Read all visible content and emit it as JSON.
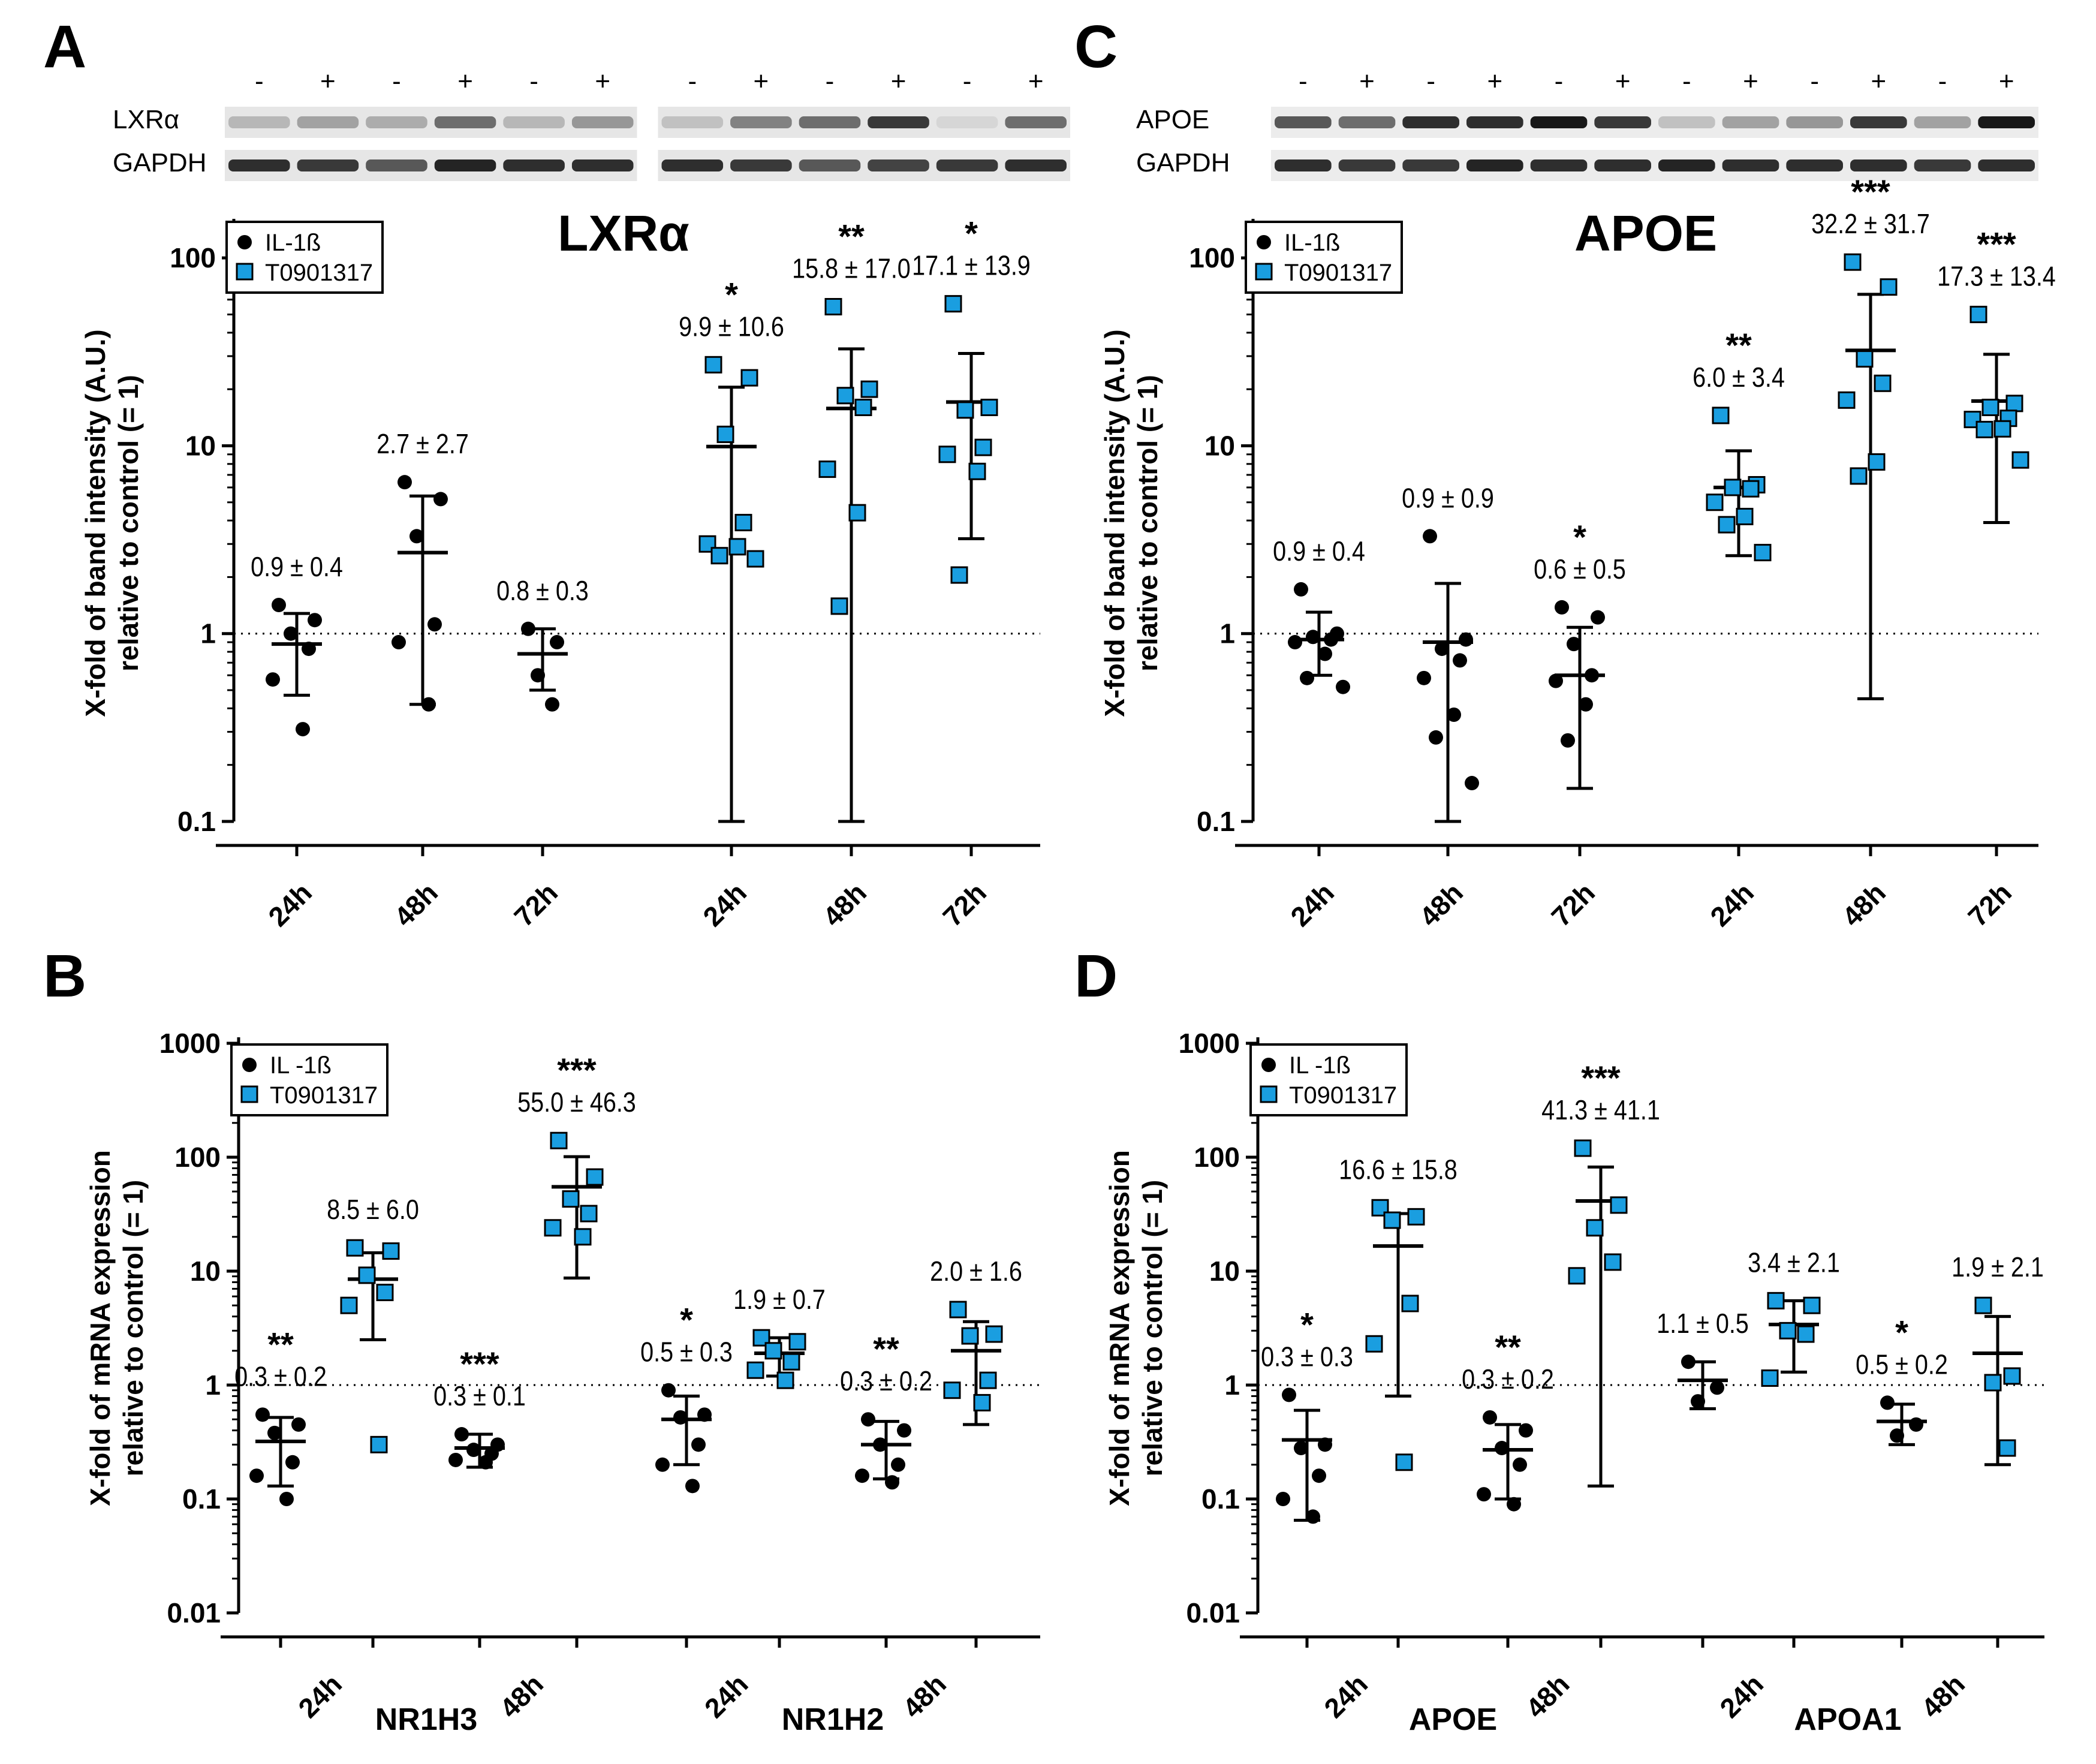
{
  "colors": {
    "il1b": "#000000",
    "t0901317": "#1a9ee0",
    "axis": "#000000",
    "blot_band": "#2a2a2a"
  },
  "icons": {
    "il1b_marker": "filled-circle",
    "t0901317_marker": "blue-square"
  },
  "chart_data": [
    {
      "panel": "A",
      "type": "scatter",
      "title": "LXRα",
      "ylabel_line1": "X-fold of band intensity (A.U.)",
      "ylabel_line2": "relative to control (= 1)",
      "yscale": "log",
      "ylim": [
        0.1,
        150
      ],
      "yticks": [
        0.1,
        1,
        10,
        100
      ],
      "ytick_labels": [
        "0.1",
        "1",
        "10",
        "100"
      ],
      "reference_line": 1,
      "legend": [
        "IL-1ß",
        "T0901317"
      ],
      "blot": {
        "signs": [
          "-",
          "+",
          "-",
          "+",
          "-",
          "+",
          "-",
          "+",
          "-",
          "+",
          "-",
          "+"
        ],
        "rows": [
          {
            "label": "LXRα",
            "intensities": [
              0.25,
              0.35,
              0.3,
              0.6,
              0.25,
              0.4,
              0.2,
              0.5,
              0.6,
              0.85,
              0.1,
              0.6
            ]
          },
          {
            "label": "GAPDH",
            "intensities": [
              0.9,
              0.85,
              0.7,
              0.95,
              0.9,
              0.9,
              0.9,
              0.85,
              0.7,
              0.8,
              0.85,
              0.9
            ]
          }
        ]
      },
      "groups": [
        {
          "label": "24h",
          "series": "IL-1ß",
          "mean": 0.88,
          "err_low": 0.47,
          "err_high": 1.28,
          "annot": "0.9 ± 0.4",
          "sig": "",
          "points": [
            1.42,
            1.18,
            1.0,
            0.83,
            0.57,
            0.31
          ]
        },
        {
          "label": "48h",
          "series": "IL-1ß",
          "mean": 2.7,
          "err_low": 0.42,
          "err_high": 5.4,
          "annot": "2.7 ± 2.7",
          "sig": "",
          "points": [
            6.4,
            5.2,
            3.3,
            1.12,
            0.9,
            0.42
          ]
        },
        {
          "label": "72h",
          "series": "IL-1ß",
          "mean": 0.78,
          "err_low": 0.5,
          "err_high": 1.06,
          "annot": "0.8 ± 0.3",
          "sig": "",
          "points": [
            1.06,
            0.9,
            0.6,
            0.42
          ]
        },
        {
          "label": "24h",
          "series": "T0901317",
          "mean": 9.9,
          "err_low": 0.1,
          "err_high": 20.5,
          "annot": "9.9 ± 10.6",
          "sig": "*",
          "points": [
            27,
            23,
            11.5,
            3.9,
            3.0,
            2.9,
            2.6,
            2.5
          ]
        },
        {
          "label": "48h",
          "series": "T0901317",
          "mean": 15.8,
          "err_low": 0.1,
          "err_high": 32.8,
          "annot": "15.8 ± 17.0",
          "sig": "**",
          "points": [
            55,
            20,
            18.5,
            16,
            7.5,
            4.4,
            1.4
          ]
        },
        {
          "label": "72h",
          "series": "T0901317",
          "mean": 17.1,
          "err_low": 3.2,
          "err_high": 31,
          "annot": "17.1 ± 13.9",
          "sig": "*",
          "points": [
            57,
            16,
            15.5,
            9.8,
            9,
            7.3,
            2.05
          ]
        }
      ]
    },
    {
      "panel": "C",
      "type": "scatter",
      "title": "APOE",
      "ylabel_line1": "X-fold of band intensity (A.U.)",
      "ylabel_line2": "relative to control (= 1)",
      "yscale": "log",
      "ylim": [
        0.1,
        150
      ],
      "yticks": [
        0.1,
        1,
        10,
        100
      ],
      "ytick_labels": [
        "0.1",
        "1",
        "10",
        "100"
      ],
      "reference_line": 1,
      "legend": [
        "IL-1ß",
        "T0901317"
      ],
      "blot": {
        "signs": [
          "-",
          "+",
          "-",
          "+",
          "-",
          "+",
          "-",
          "+",
          "-",
          "+",
          "-",
          "+"
        ],
        "rows": [
          {
            "label": "APOE",
            "intensities": [
              0.7,
              0.6,
              0.9,
              0.9,
              1.0,
              0.85,
              0.2,
              0.35,
              0.4,
              0.85,
              0.35,
              1.0
            ]
          },
          {
            "label": "GAPDH",
            "intensities": [
              0.9,
              0.85,
              0.85,
              0.95,
              0.9,
              0.9,
              0.95,
              0.9,
              0.9,
              0.9,
              0.85,
              0.9
            ]
          }
        ]
      },
      "groups": [
        {
          "label": "24h",
          "series": "IL-1ß",
          "mean": 0.93,
          "err_low": 0.6,
          "err_high": 1.3,
          "annot": "0.9 ± 0.4",
          "sig": "",
          "points": [
            1.72,
            1.0,
            0.96,
            0.93,
            0.9,
            0.78,
            0.58,
            0.52
          ]
        },
        {
          "label": "48h",
          "series": "IL-1ß",
          "mean": 0.9,
          "err_low": 0.1,
          "err_high": 1.85,
          "annot": "0.9 ± 0.9",
          "sig": "",
          "points": [
            3.3,
            0.93,
            0.83,
            0.72,
            0.58,
            0.37,
            0.28,
            0.16
          ]
        },
        {
          "label": "72h",
          "series": "IL-1ß",
          "mean": 0.6,
          "err_low": 0.15,
          "err_high": 1.08,
          "annot": "0.6 ± 0.5",
          "sig": "*",
          "points": [
            1.38,
            1.22,
            0.88,
            0.6,
            0.56,
            0.42,
            0.27
          ]
        },
        {
          "label": "24h",
          "series": "T0901317",
          "mean": 6.0,
          "err_low": 2.6,
          "err_high": 9.4,
          "annot": "6.0 ± 3.4",
          "sig": "**",
          "points": [
            14.5,
            6.2,
            6.0,
            5.9,
            5.0,
            4.2,
            3.8,
            2.7
          ]
        },
        {
          "label": "48h",
          "series": "T0901317",
          "mean": 32.2,
          "err_low": 0.45,
          "err_high": 64,
          "annot": "32.2 ± 31.7",
          "sig": "***",
          "points": [
            95,
            70,
            29,
            21.5,
            17.5,
            8.2,
            6.9
          ]
        },
        {
          "label": "72h",
          "series": "T0901317",
          "mean": 17.3,
          "err_low": 3.9,
          "err_high": 30.7,
          "annot": "17.3 ± 13.4",
          "sig": "***",
          "points": [
            50,
            16.8,
            16,
            14,
            13.8,
            12.3,
            12.2,
            8.4
          ]
        }
      ]
    },
    {
      "panel": "B",
      "type": "scatter",
      "title": "",
      "ylabel_line1": "X-fold of mRNA expression",
      "ylabel_line2": "relative to control (= 1)",
      "yscale": "log",
      "ylim": [
        0.01,
        1000
      ],
      "yticks": [
        0.01,
        0.1,
        1,
        10,
        100,
        1000
      ],
      "ytick_labels": [
        "0.01",
        "0.1",
        "1",
        "10",
        "100",
        "1000"
      ],
      "reference_line": 1,
      "legend": [
        "IL -1ß",
        "T0901317"
      ],
      "xgroup_labels": [
        "NR1H3",
        "NR1H2"
      ],
      "groups": [
        {
          "label": "24h",
          "series": "IL-1ß",
          "gene": "NR1H3",
          "mean": 0.32,
          "err_low": 0.13,
          "err_high": 0.52,
          "annot": "0.3 ± 0.2",
          "sig": "**",
          "points": [
            0.55,
            0.45,
            0.38,
            0.21,
            0.16,
            0.1
          ]
        },
        {
          "label": "24h",
          "series": "T0901317",
          "gene": "NR1H3",
          "mean": 8.5,
          "err_low": 2.5,
          "err_high": 14.5,
          "annot": "8.5 ± 6.0",
          "sig": "",
          "points": [
            16,
            15,
            9.2,
            6.5,
            5.0,
            0.3
          ]
        },
        {
          "label": "48h",
          "series": "IL-1ß",
          "gene": "NR1H3",
          "mean": 0.28,
          "err_low": 0.19,
          "err_high": 0.37,
          "annot": "0.3 ± 0.1",
          "sig": "***",
          "points": [
            0.37,
            0.3,
            0.27,
            0.25,
            0.22,
            0.21
          ]
        },
        {
          "label": "48h",
          "series": "T0901317",
          "gene": "NR1H3",
          "mean": 55,
          "err_low": 8.7,
          "err_high": 101,
          "annot": "55.0 ± 46.3",
          "sig": "***",
          "points": [
            140,
            67,
            43,
            32,
            24,
            20
          ]
        },
        {
          "label": "24h",
          "series": "IL-1ß",
          "gene": "NR1H2",
          "mean": 0.5,
          "err_low": 0.2,
          "err_high": 0.8,
          "annot": "0.5 ± 0.3",
          "sig": "*",
          "points": [
            0.9,
            0.55,
            0.52,
            0.3,
            0.2,
            0.13
          ]
        },
        {
          "label": "24h",
          "series": "T0901317",
          "gene": "NR1H2",
          "mean": 1.9,
          "err_low": 1.2,
          "err_high": 2.6,
          "annot": "1.9 ± 0.7",
          "sig": "",
          "points": [
            2.6,
            2.4,
            2.0,
            1.6,
            1.35,
            1.1
          ]
        },
        {
          "label": "48h",
          "series": "IL-1ß",
          "gene": "NR1H2",
          "mean": 0.3,
          "err_low": 0.15,
          "err_high": 0.48,
          "annot": "0.3 ± 0.2",
          "sig": "**",
          "points": [
            0.5,
            0.4,
            0.3,
            0.2,
            0.16,
            0.14
          ]
        },
        {
          "label": "48h",
          "series": "T0901317",
          "gene": "NR1H2",
          "mean": 2.0,
          "err_low": 0.45,
          "err_high": 3.6,
          "annot": "2.0 ± 1.6",
          "sig": "",
          "points": [
            4.6,
            2.8,
            2.7,
            1.1,
            0.9,
            0.7
          ]
        }
      ]
    },
    {
      "panel": "D",
      "type": "scatter",
      "title": "",
      "ylabel_line1": "X-fold of mRNA expression",
      "ylabel_line2": "relative to control (= 1)",
      "yscale": "log",
      "ylim": [
        0.01,
        1000
      ],
      "yticks": [
        0.01,
        0.1,
        1,
        10,
        100,
        1000
      ],
      "ytick_labels": [
        "0.01",
        "0.1",
        "1",
        "10",
        "100",
        "1000"
      ],
      "reference_line": 1,
      "legend": [
        "IL -1ß",
        "T0901317"
      ],
      "xgroup_labels": [
        "APOE",
        "APOA1"
      ],
      "groups": [
        {
          "label": "24h",
          "series": "IL-1ß",
          "gene": "APOE",
          "mean": 0.33,
          "err_low": 0.065,
          "err_high": 0.6,
          "annot": "0.3 ± 0.3",
          "sig": "*",
          "points": [
            0.82,
            0.3,
            0.28,
            0.16,
            0.1,
            0.07
          ]
        },
        {
          "label": "24h",
          "series": "T0901317",
          "gene": "APOE",
          "mean": 16.6,
          "err_low": 0.8,
          "err_high": 32,
          "annot": "16.6 ± 15.8",
          "sig": "",
          "points": [
            36,
            30,
            28,
            5.2,
            2.3,
            0.21
          ]
        },
        {
          "label": "48h",
          "series": "IL-1ß",
          "gene": "APOE",
          "mean": 0.27,
          "err_low": 0.1,
          "err_high": 0.45,
          "annot": "0.3 ± 0.2",
          "sig": "**",
          "points": [
            0.52,
            0.4,
            0.28,
            0.2,
            0.11,
            0.09
          ]
        },
        {
          "label": "48h",
          "series": "T0901317",
          "gene": "APOE",
          "mean": 41.3,
          "err_low": 0.13,
          "err_high": 82,
          "annot": "41.3 ± 41.1",
          "sig": "***",
          "points": [
            120,
            38,
            24,
            12,
            9.1
          ]
        },
        {
          "label": "24h",
          "series": "IL-1ß",
          "gene": "APOA1",
          "mean": 1.1,
          "err_low": 0.62,
          "err_high": 1.6,
          "annot": "1.1 ± 0.5",
          "sig": "",
          "points": [
            1.6,
            0.95,
            0.72
          ]
        },
        {
          "label": "24h",
          "series": "T0901317",
          "gene": "APOA1",
          "mean": 3.4,
          "err_low": 1.3,
          "err_high": 5.5,
          "annot": "3.4 ± 2.1",
          "sig": "",
          "points": [
            5.5,
            5.0,
            3.0,
            2.8,
            1.15
          ]
        },
        {
          "label": "48h",
          "series": "IL-1ß",
          "gene": "APOA1",
          "mean": 0.48,
          "err_low": 0.3,
          "err_high": 0.68,
          "annot": "0.5 ± 0.2",
          "sig": "*",
          "points": [
            0.7,
            0.45,
            0.36
          ]
        },
        {
          "label": "48h",
          "series": "T0901317",
          "gene": "APOA1",
          "mean": 1.9,
          "err_low": 0.2,
          "err_high": 4.0,
          "annot": "1.9 ± 2.1",
          "sig": "",
          "points": [
            5.0,
            1.2,
            1.05,
            0.28
          ]
        }
      ]
    }
  ]
}
